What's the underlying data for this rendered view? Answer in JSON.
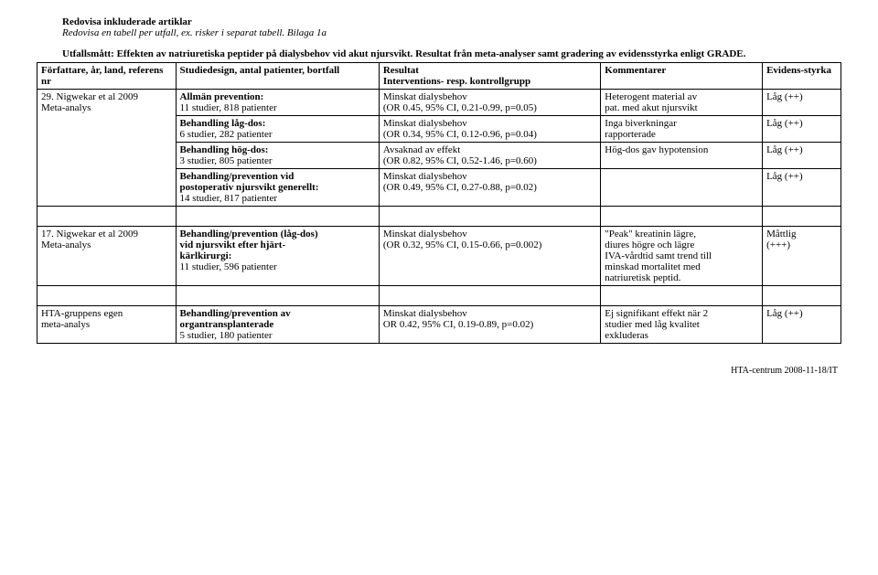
{
  "header": {
    "line1": "Redovisa inkluderade artiklar",
    "line2": "Redovisa en tabell per utfall, ex. risker i separat tabell. Bilaga 1a",
    "subtitle": "Utfallsmått: Effekten av natriuretiska peptider på dialysbehov vid akut njursvikt. Resultat från meta-analyser samt gradering av evidensstyrka enligt GRADE."
  },
  "columns": {
    "c1a": "Författare, år, land, referens",
    "c1b": "nr",
    "c2": "Studiedesign, antal patienter, bortfall",
    "c3a": "Resultat",
    "c3b": "Interventions- resp. kontrollgrupp",
    "c4": "Kommentarer",
    "c5": "Evidens-styrka"
  },
  "r1": {
    "ref_a": "29. Nigwekar et al 2009",
    "ref_b": "Meta-analys",
    "design_a": "Allmän prevention:",
    "design_b": "11 studier, 818 patienter",
    "res_a": "Minskat dialysbehov",
    "res_b": "(OR 0.45, 95% CI, 0.21-0.99, p=0.05)",
    "com_a": "Heterogent material av",
    "com_b": "pat. med akut njursvikt",
    "ev": "Låg (++)"
  },
  "r2": {
    "design_a": "Behandling låg-dos:",
    "design_b": "6 studier, 282 patienter",
    "res_a": "Minskat dialysbehov",
    "res_b": "(OR 0.34, 95% CI, 0.12-0.96, p=0.04)",
    "com_a": "Inga biverkningar",
    "com_b": "rapporterade",
    "ev": "Låg (++)"
  },
  "r3": {
    "design_a": "Behandling hög-dos:",
    "design_b": "3 studier, 805 patienter",
    "res_a": "Avsaknad av effekt",
    "res_b": "(OR 0.82, 95% CI, 0.52-1.46, p=0.60)",
    "com": "Hög-dos gav hypotension",
    "ev": "Låg (++)"
  },
  "r4": {
    "design_a": "Behandling/prevention vid",
    "design_b": "postoperativ njursvikt generellt:",
    "design_c": "14 studier, 817 patienter",
    "res_a": "Minskat dialysbehov",
    "res_b": "(OR 0.49, 95% CI, 0.27-0.88, p=0.02)",
    "ev": "Låg (++)"
  },
  "r5": {
    "ref_a": "17. Nigwekar et al 2009",
    "ref_b": "Meta-analys",
    "design_a": "Behandling/prevention (låg-dos)",
    "design_b": "vid njursvikt efter hjärt-",
    "design_c": "kärlkirurgi:",
    "design_d": "11 studier, 596 patienter",
    "res_a": "Minskat dialysbehov",
    "res_b": "(OR 0.32, 95% CI, 0.15-0.66, p=0.002)",
    "com_a": "\"Peak\" kreatinin lägre,",
    "com_b": "diures högre och lägre",
    "com_c": "IVA-vårdtid samt trend till",
    "com_d": "minskad mortalitet med",
    "com_e": "natriuretisk peptid.",
    "ev_a": "Måttlig",
    "ev_b": "(+++)"
  },
  "r6": {
    "ref_a": "HTA-gruppens egen",
    "ref_b": "meta-analys",
    "design_a": "Behandling/prevention av",
    "design_b": "organtransplanterade",
    "design_c": "5 studier, 180 patienter",
    "res_a": "Minskat dialysbehov",
    "res_b": "OR 0.42, 95% CI, 0.19-0.89, p=0.02)",
    "com_a": "Ej signifikant effekt när 2",
    "com_b": "studier med låg kvalitet",
    "com_c": "exkluderas",
    "ev": "Låg (++)"
  },
  "footer": "HTA-centrum 2008-11-18/IT"
}
